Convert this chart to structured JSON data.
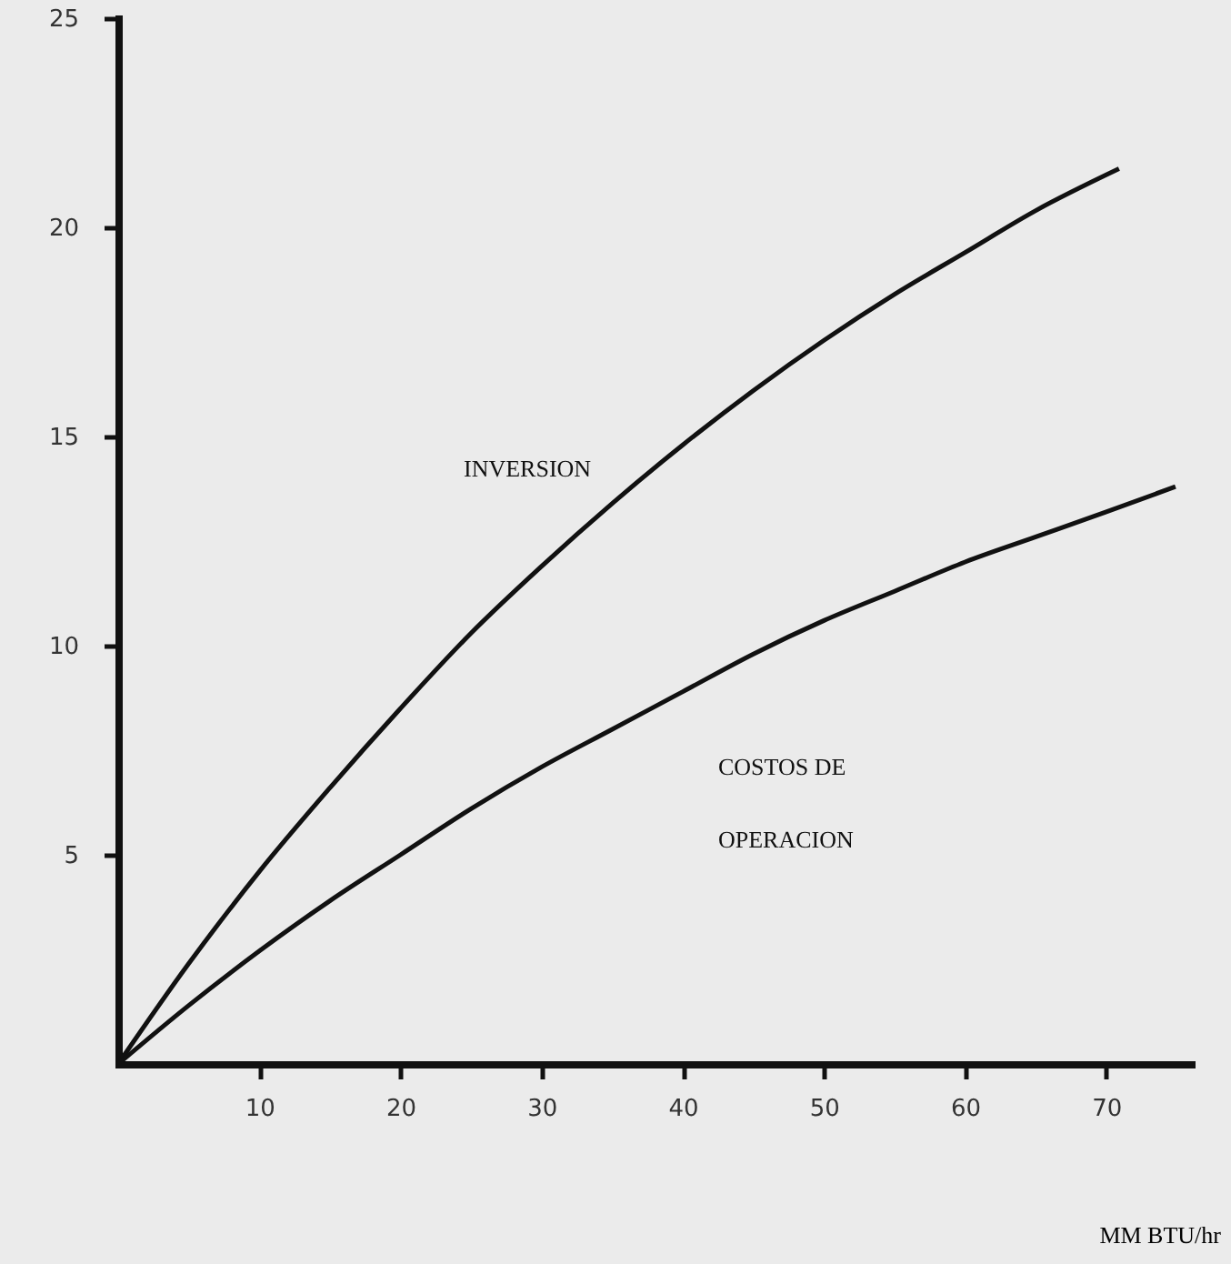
{
  "chart_data": {
    "type": "line",
    "xlabel": "MM BTU/hr",
    "xlim": [
      0,
      76
    ],
    "ylim": [
      0,
      25
    ],
    "xticks": [
      10,
      20,
      30,
      40,
      50,
      60,
      70
    ],
    "yticks": [
      5,
      10,
      15,
      20,
      25
    ],
    "grid": false,
    "legend": false,
    "series": [
      {
        "name": "INVERSION",
        "color": "#111111",
        "x": [
          0,
          5,
          10,
          15,
          20,
          25,
          30,
          35,
          40,
          45,
          50,
          55,
          60,
          65,
          70.9
        ],
        "values": [
          0,
          2.4,
          4.6,
          6.6,
          8.5,
          10.3,
          11.9,
          13.4,
          14.8,
          16.1,
          17.3,
          18.4,
          19.4,
          20.4,
          21.4
        ]
      },
      {
        "name": "COSTOS DE OPERACION",
        "color": "#111111",
        "x": [
          0,
          5,
          10,
          15,
          20,
          25,
          30,
          35,
          40,
          45,
          50,
          55,
          60,
          65,
          70,
          74.9
        ],
        "values": [
          0,
          1.4,
          2.7,
          3.9,
          5.0,
          6.1,
          7.1,
          8.0,
          8.9,
          9.8,
          10.6,
          11.3,
          12.0,
          12.6,
          13.2,
          13.8
        ]
      }
    ]
  }
}
